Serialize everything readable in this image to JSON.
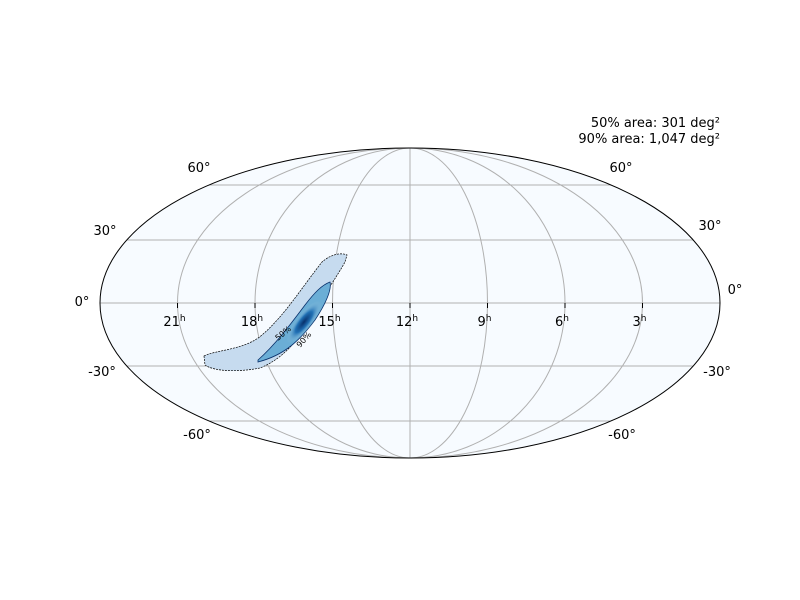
{
  "annotations": [
    "50% area: 301 deg²",
    "90% area: 1,047 deg²"
  ],
  "ra_ticks": [
    {
      "label": "21",
      "unit": "h"
    },
    {
      "label": "18",
      "unit": "h"
    },
    {
      "label": "15",
      "unit": "h"
    },
    {
      "label": "12",
      "unit": "h"
    },
    {
      "label": "9",
      "unit": "h"
    },
    {
      "label": "6",
      "unit": "h"
    },
    {
      "label": "3",
      "unit": "h"
    }
  ],
  "dec_ticks": [
    "60°",
    "30°",
    "0°",
    "-30°",
    "-60°"
  ],
  "contours": [
    "50%",
    "90%"
  ]
}
